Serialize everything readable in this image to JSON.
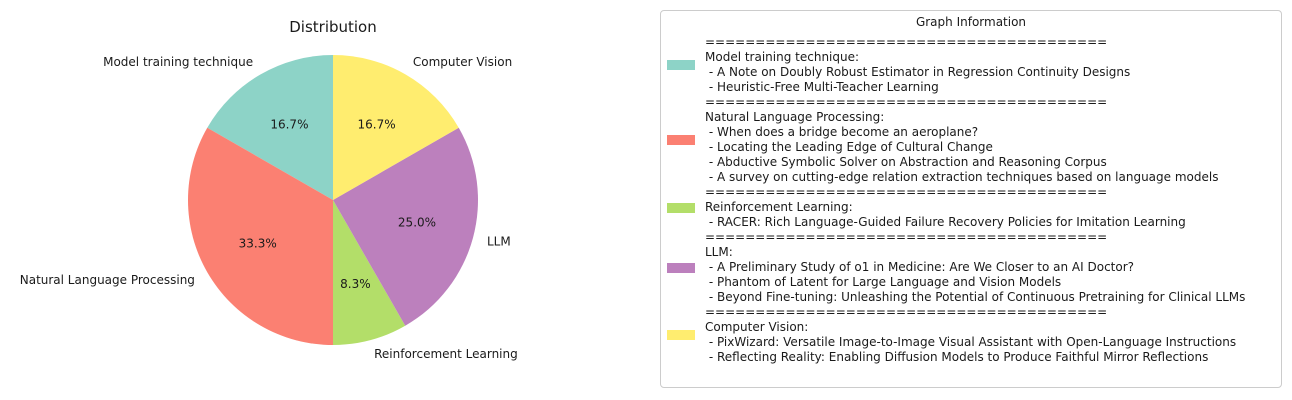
{
  "chart_data": {
    "type": "pie",
    "title": "Distribution",
    "start_angle_deg": 90,
    "direction": "counterclockwise",
    "slices": [
      {
        "label": "Model training technique",
        "value": 16.7,
        "pct_label": "16.7%",
        "color": "#8dd3c7"
      },
      {
        "label": "Natural Language Processing",
        "value": 33.3,
        "pct_label": "33.3%",
        "color": "#fb8072"
      },
      {
        "label": "Reinforcement Learning",
        "value": 8.3,
        "pct_label": "8.3%",
        "color": "#b3de69"
      },
      {
        "label": "LLM",
        "value": 25.0,
        "pct_label": "25.0%",
        "color": "#bc80bd"
      },
      {
        "label": "Computer Vision",
        "value": 16.7,
        "pct_label": "16.7%",
        "color": "#ffed6f"
      }
    ]
  },
  "legend": {
    "title": "Graph Information",
    "entries": [
      {
        "color": "#8dd3c7",
        "lines": [
          "========================================",
          "Model training technique:",
          " - A Note on Doubly Robust Estimator in Regression Continuity Designs",
          " - Heuristic-Free Multi-Teacher Learning"
        ]
      },
      {
        "color": "#fb8072",
        "lines": [
          "========================================",
          "Natural Language Processing:",
          " - When does a bridge become an aeroplane?",
          " - Locating the Leading Edge of Cultural Change",
          " - Abductive Symbolic Solver on Abstraction and Reasoning Corpus",
          " - A survey on cutting-edge relation extraction techniques based on language models"
        ]
      },
      {
        "color": "#b3de69",
        "lines": [
          "========================================",
          "Reinforcement Learning:",
          " - RACER: Rich Language-Guided Failure Recovery Policies for Imitation Learning"
        ]
      },
      {
        "color": "#bc80bd",
        "lines": [
          "========================================",
          "LLM:",
          " - A Preliminary Study of o1 in Medicine: Are We Closer to an AI Doctor?",
          " - Phantom of Latent for Large Language and Vision Models",
          " - Beyond Fine-tuning: Unleashing the Potential of Continuous Pretraining for Clinical LLMs"
        ]
      },
      {
        "color": "#ffed6f",
        "lines": [
          "========================================",
          "Computer Vision:",
          " - PixWizard: Versatile Image-to-Image Visual Assistant with Open-Language Instructions",
          " - Reflecting Reality: Enabling Diffusion Models to Produce Faithful Mirror Reflections"
        ]
      }
    ]
  }
}
